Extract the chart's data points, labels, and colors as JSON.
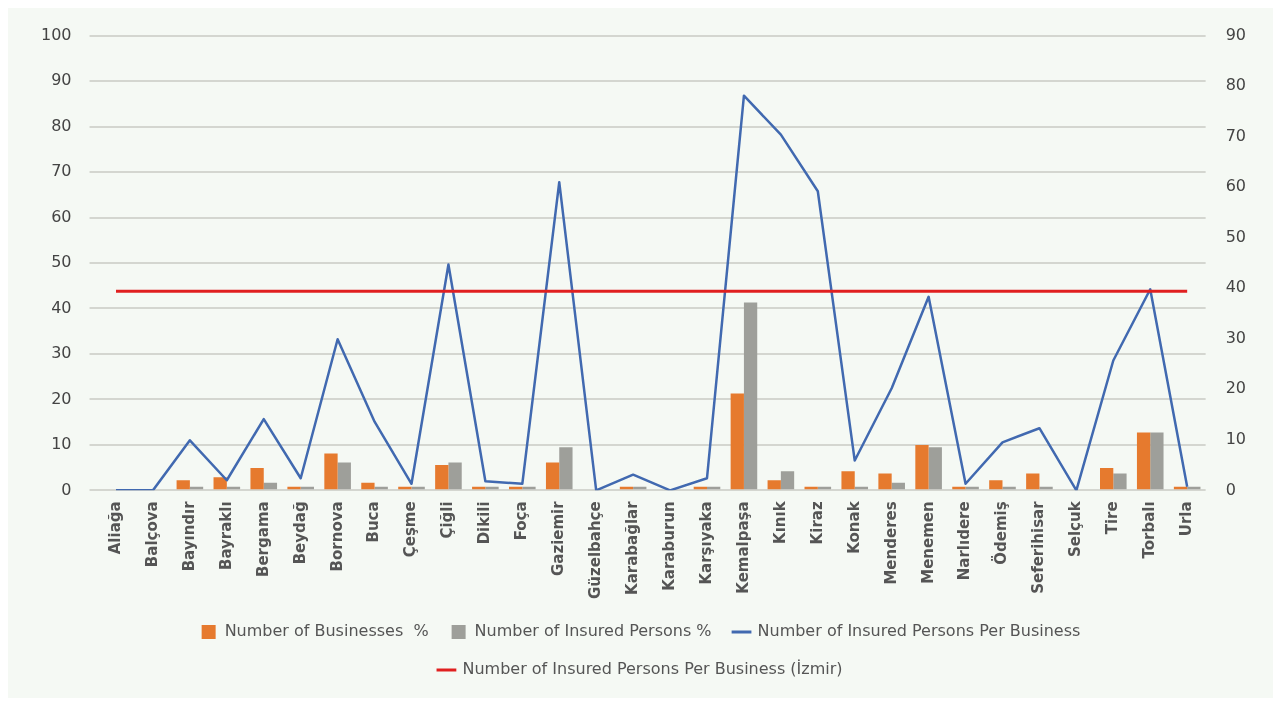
{
  "chart_data": {
    "type": "bar",
    "categories": [
      "Aliağa",
      "Balçova",
      "Bayındır",
      "Bayraklı",
      "Bergama",
      "Beydağ",
      "Bornova",
      "Buca",
      "Çeşme",
      "Çiğli",
      "Dikili",
      "Foça",
      "Gaziemir",
      "Güzelbahçe",
      "Karabağlar",
      "Karaburun",
      "Karşıyaka",
      "Kemalpaşa",
      "Kınık",
      "Kiraz",
      "Konak",
      "Menderes",
      "Menemen",
      "Narlıdere",
      "Ödemiş",
      "Seferihisar",
      "Selçuk",
      "Tire",
      "Torbalı",
      "Urla"
    ],
    "series": [
      {
        "name": "Number of Businesses  %",
        "color": "#e67a2e",
        "values": [
          0,
          0,
          2.2,
          2.9,
          4.9,
          0.8,
          8.1,
          1.7,
          0.8,
          5.6,
          0.8,
          0.8,
          6.1,
          0,
          0.8,
          0,
          0.8,
          21.3,
          2.2,
          0.8,
          4.2,
          3.7,
          10,
          0.8,
          2.2,
          3.7,
          0,
          4.9,
          12.7,
          0.8
        ]
      },
      {
        "name": "Number of Insured Persons %",
        "color": "#9e9f9a",
        "values": [
          0,
          0,
          0.8,
          0.8,
          1.7,
          0.8,
          6.1,
          0.8,
          0.8,
          6.1,
          0.8,
          0.8,
          9.5,
          0,
          0.8,
          0,
          0.8,
          41.3,
          4.2,
          0.8,
          0.8,
          1.7,
          9.5,
          0.8,
          0.8,
          0.8,
          0,
          3.7,
          12.7,
          0.8
        ]
      },
      {
        "name": "Number of Insured Persons Per Business",
        "type": "line",
        "axis": "y2",
        "color": "#4169b0",
        "values": [
          0,
          0,
          9.9,
          2,
          14.1,
          2.4,
          29.9,
          13.6,
          1.3,
          44.7,
          1.8,
          1.3,
          61,
          0,
          3.1,
          0,
          2.4,
          78.1,
          70.4,
          59.2,
          5.9,
          20.2,
          38.3,
          1.3,
          9.5,
          12.3,
          0,
          25.7,
          39.8,
          0.7
        ]
      }
    ],
    "ref_lines": [
      {
        "axis": "y2",
        "value": 39.4,
        "label": "Number of Insured Persons Per Business (İzmir)",
        "color": "#e02020"
      }
    ],
    "ylim": [
      0,
      100
    ],
    "yticks": [
      0,
      10,
      20,
      30,
      40,
      50,
      60,
      70,
      80,
      90,
      100
    ],
    "y2lim": [
      0,
      90
    ],
    "y2ticks": [
      0,
      10,
      20,
      30,
      40,
      50,
      60,
      70,
      80,
      90
    ],
    "grid": "y",
    "legend": "bottom",
    "marker": "none"
  }
}
